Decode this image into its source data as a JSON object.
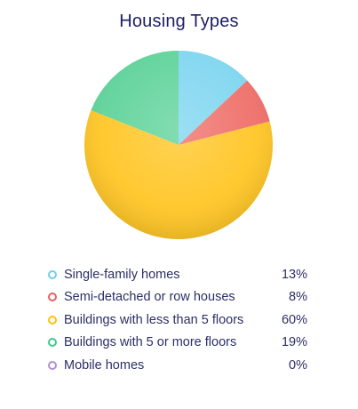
{
  "chart_data": {
    "type": "pie",
    "title": "Housing Types",
    "categories": [
      "Single-family homes",
      "Semi-detached or row houses",
      "Buildings with less than 5 floors",
      "Buildings with 5 or more floors",
      "Mobile homes"
    ],
    "values": [
      13,
      8,
      60,
      19,
      0
    ],
    "value_labels": [
      "13%",
      "8%",
      "60%",
      "19%",
      "0%"
    ],
    "unit": "%",
    "colors": [
      "#7fd6f0",
      "#ef6f69",
      "#ffc626",
      "#5fd39a",
      "#b38dd4"
    ],
    "marker_colors": [
      "#6fd0ee",
      "#ec5f5f",
      "#ffc107",
      "#3fc98c",
      "#b38dd4"
    ],
    "legend_position": "bottom"
  }
}
